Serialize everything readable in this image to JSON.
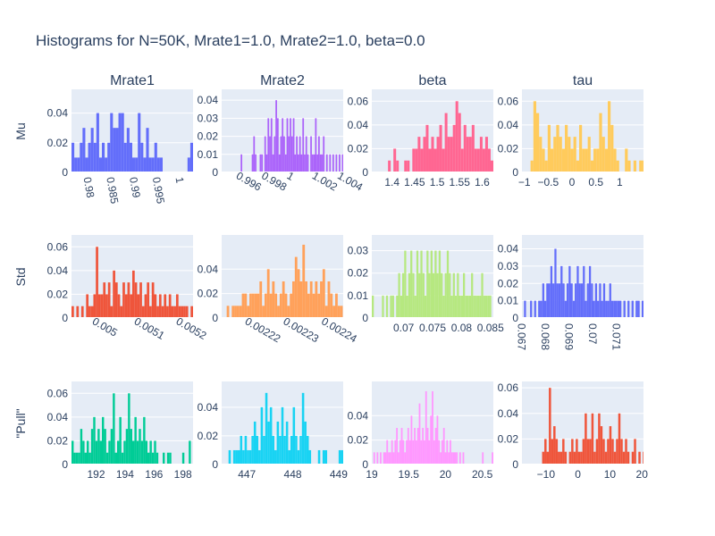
{
  "title": "Histograms for N=50K, Mrate1=1.0, Mrate2=1.0, beta=0.0",
  "column_titles": [
    "Mrate1",
    "Mrate2",
    "beta",
    "tau"
  ],
  "row_titles": [
    "Mu",
    "Std",
    "\"Pull\""
  ],
  "chart_data": [
    {
      "type": "bar",
      "row": 0,
      "col": 0,
      "color": "#636efa",
      "xlim": [
        0.9768,
        1.0032
      ],
      "ylim": [
        0,
        0.056
      ],
      "bin_start": 0.9768,
      "bin_width": 0.0006,
      "values": [
        0.02,
        0.01,
        0.01,
        0.02,
        0.03,
        0.01,
        0.02,
        0.03,
        0.02,
        0.04,
        0.01,
        0.02,
        0.01,
        0.02,
        0.04,
        0.03,
        0.03,
        0.04,
        0.04,
        0.02,
        0.03,
        0.02,
        0.01,
        0.01,
        0.04,
        0.02,
        0.01,
        0.03,
        0.01,
        0.01,
        0.02,
        0.01,
        0.01,
        0,
        0,
        0,
        0,
        0,
        0,
        0,
        0,
        0,
        0.01,
        0.02
      ],
      "xticks": [
        {
          "v": 0.98,
          "l": "0.98"
        },
        {
          "v": 0.985,
          "l": "0.985"
        },
        {
          "v": 0.99,
          "l": "0.99"
        },
        {
          "v": 0.995,
          "l": "0.995"
        },
        {
          "v": 1.0,
          "l": "1"
        }
      ],
      "yticks": [
        {
          "v": 0,
          "l": "0"
        },
        {
          "v": 0.02,
          "l": "0.02"
        },
        {
          "v": 0.04,
          "l": "0.04"
        }
      ],
      "xtick_rotate": 80
    },
    {
      "type": "bar",
      "row": 0,
      "col": 1,
      "color": "#ab63fa",
      "xlim": [
        0.9947,
        1.0043
      ],
      "ylim": [
        0,
        0.046
      ],
      "bin_start": 0.9947,
      "bin_width": 0.000125,
      "values": [
        0,
        0,
        0,
        0,
        0,
        0,
        0,
        0,
        0,
        0,
        0,
        0,
        0.01,
        0,
        0,
        0,
        0,
        0,
        0,
        0.01,
        0.02,
        0.01,
        0,
        0,
        0.01,
        0.01,
        0,
        0.02,
        0.01,
        0.03,
        0.02,
        0.03,
        0.01,
        0.02,
        0.04,
        0.03,
        0.01,
        0.02,
        0.03,
        0.02,
        0.01,
        0.03,
        0.02,
        0.03,
        0.02,
        0.03,
        0.01,
        0.02,
        0.01,
        0.02,
        0.01,
        0.03,
        0.01,
        0.02,
        0.01,
        0,
        0.02,
        0.01,
        0.01,
        0.03,
        0.01,
        0.02,
        0.01,
        0.01,
        0.02,
        0,
        0.01,
        0,
        0.01,
        0,
        0.01,
        0,
        0.01,
        0,
        0.01,
        0,
        0.01
      ],
      "xticks": [
        {
          "v": 0.996,
          "l": "0.996"
        },
        {
          "v": 0.998,
          "l": "0.998"
        },
        {
          "v": 1.0,
          "l": "1"
        },
        {
          "v": 1.002,
          "l": "1.002"
        },
        {
          "v": 1.004,
          "l": "1.004"
        }
      ],
      "yticks": [
        {
          "v": 0,
          "l": "0"
        },
        {
          "v": 0.01,
          "l": "0.01"
        },
        {
          "v": 0.02,
          "l": "0.02"
        },
        {
          "v": 0.03,
          "l": "0.03"
        },
        {
          "v": 0.04,
          "l": "0.04"
        }
      ],
      "xtick_rotate": 30
    },
    {
      "type": "bar",
      "row": 0,
      "col": 2,
      "color": "#ff6692",
      "xlim": [
        1.355,
        1.625
      ],
      "ylim": [
        0,
        0.07
      ],
      "bin_start": 1.355,
      "bin_width": 0.006,
      "values": [
        0,
        0,
        0,
        0,
        0,
        0,
        0.01,
        0,
        0.02,
        0.01,
        0,
        0,
        0.01,
        0.01,
        0,
        0.02,
        0.02,
        0.03,
        0.02,
        0.03,
        0.04,
        0.02,
        0.03,
        0.02,
        0.03,
        0.04,
        0.02,
        0.05,
        0.03,
        0.03,
        0.04,
        0.06,
        0.05,
        0.02,
        0.04,
        0.03,
        0.03,
        0.04,
        0.02,
        0.02,
        0.03,
        0.02,
        0.03,
        0.02,
        0.01,
        0.02
      ],
      "xticks": [
        {
          "v": 1.4,
          "l": "1.4"
        },
        {
          "v": 1.45,
          "l": "1.45"
        },
        {
          "v": 1.5,
          "l": "1.5"
        },
        {
          "v": 1.55,
          "l": "1.55"
        },
        {
          "v": 1.6,
          "l": "1.6"
        }
      ],
      "yticks": [
        {
          "v": 0,
          "l": "0"
        },
        {
          "v": 0.02,
          "l": "0.02"
        },
        {
          "v": 0.04,
          "l": "0.04"
        },
        {
          "v": 0.06,
          "l": "0.06"
        }
      ],
      "xtick_rotate": 0
    },
    {
      "type": "bar",
      "row": 0,
      "col": 3,
      "color": "#ffcb5c",
      "xlim": [
        -1.05,
        1.5
      ],
      "ylim": [
        0,
        0.07
      ],
      "bin_start": -1.05,
      "bin_width": 0.06,
      "values": [
        0,
        0,
        0,
        0.01,
        0.06,
        0.05,
        0.03,
        0.02,
        0.01,
        0.04,
        0.02,
        0.03,
        0.04,
        0.03,
        0.02,
        0.04,
        0.03,
        0.02,
        0.03,
        0.01,
        0.04,
        0.02,
        0.02,
        0.03,
        0.01,
        0.02,
        0.02,
        0.05,
        0.03,
        0.02,
        0.06,
        0.04,
        0.02,
        0.01,
        0,
        0,
        0.02,
        0.01,
        0,
        0.01,
        0,
        0.01,
        0.01
      ],
      "xticks": [
        {
          "v": -1,
          "l": "−1"
        },
        {
          "v": -0.5,
          "l": "−0.5"
        },
        {
          "v": 0,
          "l": "0"
        },
        {
          "v": 0.5,
          "l": "0.5"
        },
        {
          "v": 1,
          "l": "1"
        }
      ],
      "yticks": [
        {
          "v": 0,
          "l": "0"
        },
        {
          "v": 0.02,
          "l": "0.02"
        },
        {
          "v": 0.04,
          "l": "0.04"
        },
        {
          "v": 0.06,
          "l": "0.06"
        }
      ],
      "xtick_rotate": 0
    },
    {
      "type": "bar",
      "row": 1,
      "col": 0,
      "color": "#ef553b",
      "xlim": [
        0.004946,
        0.005236
      ],
      "ylim": [
        0,
        0.07
      ],
      "bin_start": 0.004946,
      "bin_width": 5.8e-06,
      "values": [
        0.01,
        0,
        0.01,
        0,
        0.01,
        0,
        0.02,
        0.01,
        0.01,
        0.02,
        0.06,
        0.02,
        0.02,
        0.03,
        0.02,
        0.03,
        0.01,
        0.04,
        0.03,
        0.02,
        0.01,
        0.03,
        0.02,
        0.03,
        0.02,
        0.04,
        0.03,
        0.02,
        0.03,
        0.01,
        0.02,
        0.03,
        0.01,
        0.03,
        0.02,
        0.01,
        0.02,
        0.01,
        0.02,
        0.01,
        0.02,
        0.01,
        0.01,
        0.02,
        0.01,
        0.01,
        0.01,
        0.01,
        0,
        0.01
      ],
      "xticks": [
        {
          "v": 0.005,
          "l": "0.005"
        },
        {
          "v": 0.0051,
          "l": "0.0051"
        },
        {
          "v": 0.0052,
          "l": "0.0052"
        }
      ],
      "yticks": [
        {
          "v": 0,
          "l": "0"
        },
        {
          "v": 0.02,
          "l": "0.02"
        },
        {
          "v": 0.04,
          "l": "0.04"
        },
        {
          "v": 0.06,
          "l": "0.06"
        }
      ],
      "xtick_rotate": 30
    },
    {
      "type": "bar",
      "row": 1,
      "col": 1,
      "color": "#ffa15a",
      "xlim": [
        0.0022134,
        0.0022452
      ],
      "ylim": [
        0,
        0.068
      ],
      "bin_start": 0.0022134,
      "bin_width": 6.6e-07,
      "values": [
        0,
        0,
        0.01,
        0,
        0.01,
        0.01,
        0.01,
        0.01,
        0.02,
        0.02,
        0.01,
        0.02,
        0.02,
        0.02,
        0.02,
        0.03,
        0.01,
        0.02,
        0.04,
        0.02,
        0.03,
        0.02,
        0.01,
        0.02,
        0.03,
        0.02,
        0.01,
        0.02,
        0.03,
        0.05,
        0.04,
        0.03,
        0.06,
        0.03,
        0.02,
        0.03,
        0.02,
        0.03,
        0.02,
        0.03,
        0.04,
        0.01,
        0.03,
        0.02,
        0.01,
        0.02,
        0.01,
        0.01
      ],
      "xticks": [
        {
          "v": 0.00222,
          "l": "0.00222"
        },
        {
          "v": 0.00223,
          "l": "0.00223"
        },
        {
          "v": 0.00224,
          "l": "0.00224"
        }
      ],
      "yticks": [
        {
          "v": 0,
          "l": "0"
        },
        {
          "v": 0.02,
          "l": "0.02"
        },
        {
          "v": 0.04,
          "l": "0.04"
        }
      ],
      "xtick_rotate": 30
    },
    {
      "type": "bar",
      "row": 1,
      "col": 2,
      "color": "#b6e880",
      "xlim": [
        0.0645,
        0.0855
      ],
      "ylim": [
        0,
        0.037
      ],
      "bin_start": 0.0645,
      "bin_width": 0.00035,
      "values": [
        0.01,
        0,
        0,
        0,
        0,
        0.01,
        0,
        0.01,
        0,
        0.01,
        0.01,
        0,
        0.01,
        0.02,
        0.01,
        0.02,
        0.03,
        0.01,
        0.02,
        0.03,
        0.02,
        0.01,
        0.03,
        0.02,
        0.03,
        0.02,
        0.01,
        0.03,
        0.02,
        0.03,
        0.02,
        0.03,
        0.02,
        0.03,
        0.02,
        0.01,
        0.02,
        0.03,
        0.02,
        0.01,
        0.02,
        0.01,
        0.02,
        0.01,
        0.01,
        0.02,
        0.01,
        0.01,
        0.01,
        0.02,
        0.01,
        0.01,
        0.01,
        0.01,
        0.02,
        0.01,
        0.01,
        0.01,
        0.01,
        0
      ],
      "xticks": [
        {
          "v": 0.07,
          "l": "0.07"
        },
        {
          "v": 0.075,
          "l": "0.075"
        },
        {
          "v": 0.08,
          "l": "0.08"
        },
        {
          "v": 0.085,
          "l": "0.085"
        }
      ],
      "yticks": [
        {
          "v": 0,
          "l": "0"
        },
        {
          "v": 0.01,
          "l": "0.01"
        },
        {
          "v": 0.02,
          "l": "0.02"
        },
        {
          "v": 0.03,
          "l": "0.03"
        }
      ],
      "xtick_rotate": 0
    },
    {
      "type": "bar",
      "row": 1,
      "col": 3,
      "color": "#636efa",
      "xlim": [
        0.06705,
        0.0722
      ],
      "ylim": [
        0,
        0.048
      ],
      "bin_start": 0.06705,
      "bin_width": 8.6e-05,
      "values": [
        0,
        0.01,
        0,
        0,
        0.01,
        0,
        0.01,
        0,
        0.01,
        0.01,
        0.02,
        0.01,
        0.02,
        0.02,
        0.03,
        0.02,
        0.04,
        0.02,
        0.02,
        0.03,
        0.02,
        0.01,
        0.02,
        0.03,
        0.02,
        0.01,
        0.02,
        0.03,
        0.02,
        0.02,
        0.03,
        0.01,
        0.02,
        0.03,
        0.02,
        0.01,
        0.02,
        0.01,
        0.02,
        0.01,
        0.02,
        0.01,
        0.01,
        0.02,
        0.01,
        0.01,
        0.01,
        0.01,
        0.01,
        0,
        0.01,
        0,
        0.01,
        0,
        0.01,
        0,
        0.01,
        0.01,
        0,
        0.01
      ],
      "xticks": [
        {
          "v": 0.067,
          "l": "0.067"
        },
        {
          "v": 0.068,
          "l": "0.068"
        },
        {
          "v": 0.069,
          "l": "0.069"
        },
        {
          "v": 0.07,
          "l": "0.07"
        },
        {
          "v": 0.071,
          "l": "0.071"
        }
      ],
      "yticks": [
        {
          "v": 0,
          "l": "0"
        },
        {
          "v": 0.01,
          "l": "0.01"
        },
        {
          "v": 0.02,
          "l": "0.02"
        },
        {
          "v": 0.03,
          "l": "0.03"
        },
        {
          "v": 0.04,
          "l": "0.04"
        }
      ],
      "xtick_rotate": 90
    },
    {
      "type": "bar",
      "row": 2,
      "col": 0,
      "color": "#00cc96",
      "xlim": [
        190.3,
        198.7
      ],
      "ylim": [
        0,
        0.07
      ],
      "bin_start": 190.3,
      "bin_width": 0.15,
      "values": [
        0.02,
        0.01,
        0.01,
        0.01,
        0.03,
        0.02,
        0.01,
        0.02,
        0.01,
        0.03,
        0.04,
        0.02,
        0.03,
        0.02,
        0.04,
        0.03,
        0.01,
        0.02,
        0.03,
        0.06,
        0.01,
        0.02,
        0.04,
        0.01,
        0.02,
        0.03,
        0.06,
        0.03,
        0.02,
        0.04,
        0.02,
        0.03,
        0.02,
        0.04,
        0.02,
        0.01,
        0.02,
        0.01,
        0.02,
        0.01,
        0,
        0,
        0.01,
        0,
        0.01,
        0.01,
        0,
        0,
        0,
        0,
        0,
        0.01,
        0,
        0,
        0.02
      ],
      "xticks": [
        {
          "v": 192,
          "l": "192"
        },
        {
          "v": 194,
          "l": "194"
        },
        {
          "v": 196,
          "l": "196"
        },
        {
          "v": 198,
          "l": "198"
        }
      ],
      "yticks": [
        {
          "v": 0,
          "l": "0"
        },
        {
          "v": 0.02,
          "l": "0.02"
        },
        {
          "v": 0.04,
          "l": "0.04"
        },
        {
          "v": 0.06,
          "l": "0.06"
        }
      ],
      "xtick_rotate": 0
    },
    {
      "type": "bar",
      "row": 2,
      "col": 1,
      "color": "#19d3f3",
      "xlim": [
        446.45,
        449.1
      ],
      "ylim": [
        0,
        0.058
      ],
      "bin_start": 446.45,
      "bin_width": 0.05,
      "values": [
        0,
        0,
        0,
        0.01,
        0,
        0.01,
        0.01,
        0.01,
        0.02,
        0.01,
        0.02,
        0.01,
        0.01,
        0.02,
        0.03,
        0.02,
        0.01,
        0.04,
        0.02,
        0.05,
        0.03,
        0.04,
        0.02,
        0.01,
        0.03,
        0.02,
        0.04,
        0.02,
        0.03,
        0.01,
        0.02,
        0.04,
        0.02,
        0.01,
        0.02,
        0.05,
        0.03,
        0.02,
        0.01,
        0,
        0,
        0,
        0.01,
        0,
        0.01,
        0.01,
        0,
        0,
        0,
        0,
        0,
        0.01,
        0.01
      ],
      "xticks": [
        {
          "v": 447,
          "l": "447"
        },
        {
          "v": 448,
          "l": "448"
        },
        {
          "v": 449,
          "l": "449"
        }
      ],
      "yticks": [
        {
          "v": 0,
          "l": "0"
        },
        {
          "v": 0.02,
          "l": "0.02"
        },
        {
          "v": 0.04,
          "l": "0.04"
        }
      ],
      "xtick_rotate": 0
    },
    {
      "type": "bar",
      "row": 2,
      "col": 2,
      "color": "#ff97ff",
      "xlim": [
        19.0,
        20.65
      ],
      "ylim": [
        0,
        0.068
      ],
      "bin_start": 19.0,
      "bin_width": 0.022,
      "values": [
        0,
        0.01,
        0,
        0.01,
        0,
        0.01,
        0,
        0.01,
        0.01,
        0.02,
        0.01,
        0.01,
        0.02,
        0.01,
        0.02,
        0.03,
        0.01,
        0.02,
        0.03,
        0.02,
        0.01,
        0.02,
        0.03,
        0.02,
        0.04,
        0.02,
        0.03,
        0.02,
        0.03,
        0.05,
        0.02,
        0.03,
        0.02,
        0.06,
        0.03,
        0.02,
        0.04,
        0.06,
        0.02,
        0.03,
        0.04,
        0.02,
        0.01,
        0.02,
        0.03,
        0.01,
        0.02,
        0.01,
        0.02,
        0.01,
        0.01,
        0.01,
        0.01,
        0,
        0.01,
        0,
        0.01,
        0,
        0,
        0,
        0,
        0,
        0,
        0,
        0,
        0,
        0,
        0,
        0.01,
        0,
        0,
        0,
        0,
        0,
        0.01
      ],
      "xticks": [
        {
          "v": 19,
          "l": "19"
        },
        {
          "v": 19.5,
          "l": "19.5"
        },
        {
          "v": 20,
          "l": "20"
        },
        {
          "v": 20.5,
          "l": "20.5"
        }
      ],
      "yticks": [
        {
          "v": 0,
          "l": "0"
        },
        {
          "v": 0.02,
          "l": "0.02"
        },
        {
          "v": 0.04,
          "l": "0.04"
        }
      ],
      "xtick_rotate": 0
    },
    {
      "type": "bar",
      "row": 2,
      "col": 3,
      "color": "#ef553b",
      "xlim": [
        -17.5,
        20.5
      ],
      "ylim": [
        0,
        0.065
      ],
      "bin_start": -17.5,
      "bin_width": 0.7,
      "values": [
        0,
        0,
        0,
        0,
        0,
        0,
        0,
        0,
        0,
        0.01,
        0.02,
        0.01,
        0.06,
        0.02,
        0.03,
        0.02,
        0.01,
        0.01,
        0.02,
        0.01,
        0,
        0.01,
        0.02,
        0.01,
        0.02,
        0.01,
        0.01,
        0.02,
        0.04,
        0.02,
        0.02,
        0.04,
        0.01,
        0.02,
        0.04,
        0.03,
        0.02,
        0.01,
        0.02,
        0.03,
        0.02,
        0.01,
        0.02,
        0.04,
        0.02,
        0.01,
        0.02,
        0.01,
        0,
        0.01,
        0.02,
        0,
        0.01,
        0,
        0.01
      ],
      "xticks": [
        {
          "v": -10,
          "l": "−10"
        },
        {
          "v": 0,
          "l": "0"
        },
        {
          "v": 10,
          "l": "10"
        },
        {
          "v": 20,
          "l": "20"
        }
      ],
      "yticks": [
        {
          "v": 0,
          "l": "0"
        },
        {
          "v": 0.02,
          "l": "0.02"
        },
        {
          "v": 0.04,
          "l": "0.04"
        },
        {
          "v": 0.06,
          "l": "0.06"
        }
      ],
      "xtick_rotate": 0
    }
  ]
}
